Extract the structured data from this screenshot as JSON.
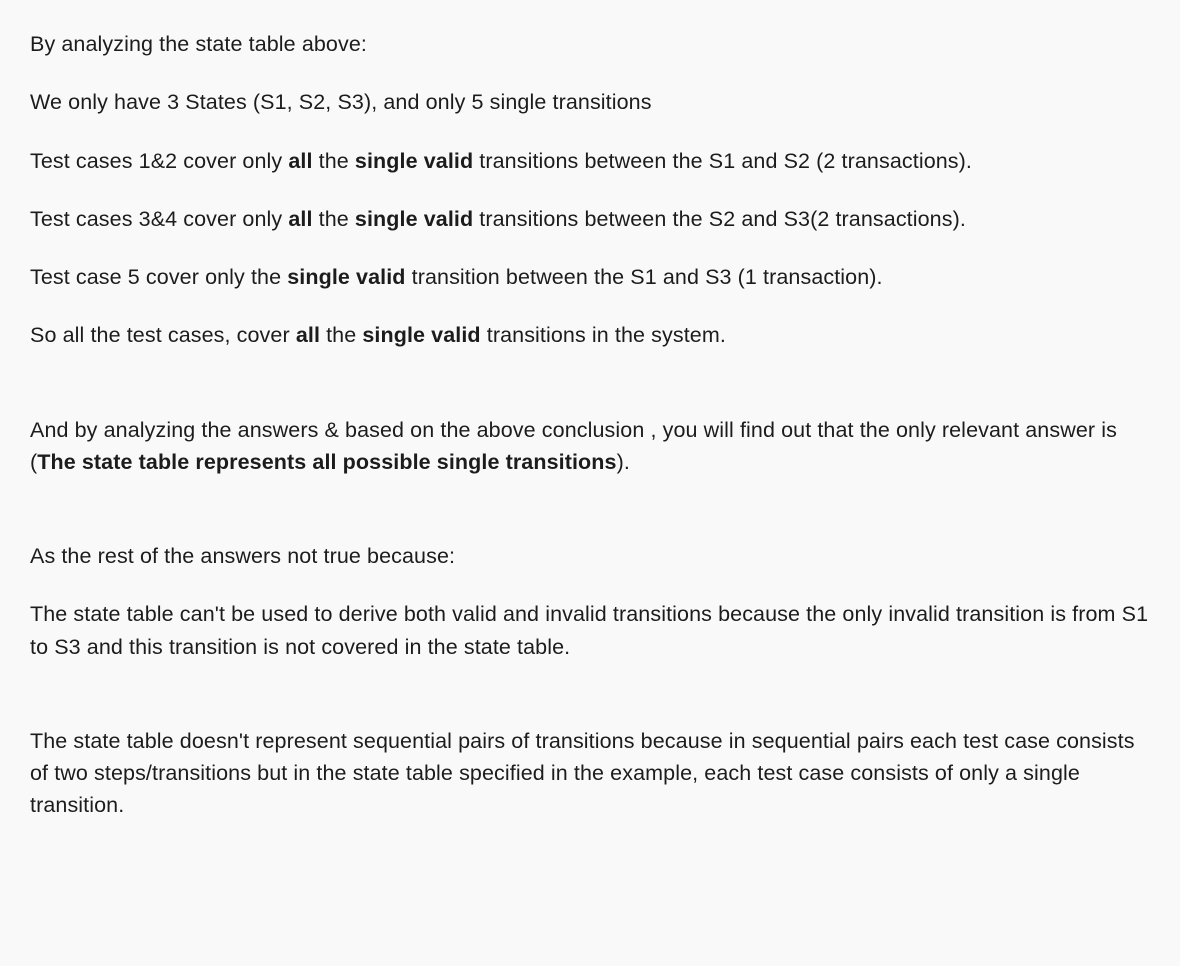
{
  "doc": {
    "background_color": "#f9f9fa",
    "text_color": "#1c1c1c",
    "font_size_pt": 16,
    "line_height": 1.5,
    "paragraphs": [
      {
        "runs": [
          {
            "t": "By analyzing the state table above:",
            "b": false
          }
        ]
      },
      {
        "runs": [
          {
            "t": "We only have 3 States (S1, S2, S3), and only 5 single transitions",
            "b": false
          }
        ]
      },
      {
        "runs": [
          {
            "t": "Test cases 1&2 cover only ",
            "b": false
          },
          {
            "t": "all",
            "b": true
          },
          {
            "t": " the ",
            "b": false
          },
          {
            "t": "single valid",
            "b": true
          },
          {
            "t": " transitions between the S1 and S2 (2 transactions).",
            "b": false
          }
        ]
      },
      {
        "runs": [
          {
            "t": "Test cases 3&4 cover only ",
            "b": false
          },
          {
            "t": "all",
            "b": true
          },
          {
            "t": " the ",
            "b": false
          },
          {
            "t": "single valid",
            "b": true
          },
          {
            "t": " transitions between the S2 and S3(2 transactions).",
            "b": false
          }
        ]
      },
      {
        "runs": [
          {
            "t": "Test case 5 cover only the ",
            "b": false
          },
          {
            "t": "single valid",
            "b": true
          },
          {
            "t": " transition between the S1 and S3 (1 transaction).",
            "b": false
          }
        ]
      },
      {
        "runs": [
          {
            "t": "So all the test cases, cover ",
            "b": false
          },
          {
            "t": "all",
            "b": true
          },
          {
            "t": " the ",
            "b": false
          },
          {
            "t": "single valid",
            "b": true
          },
          {
            "t": " transitions in the system.",
            "b": false
          }
        ]
      },
      {
        "gap": true
      },
      {
        "runs": [
          {
            "t": "And by analyzing the answers & based on the above conclusion , you will find out that the only relevant answer is (",
            "b": false
          },
          {
            "t": "The state table represents all possible single transitions",
            "b": true
          },
          {
            "t": ").",
            "b": false
          }
        ]
      },
      {
        "gap": true
      },
      {
        "runs": [
          {
            "t": "As the rest of the answers not true because:",
            "b": false
          }
        ]
      },
      {
        "runs": [
          {
            "t": "The state table can't be used to derive both valid and invalid transitions because the only invalid transition is from S1 to S3 and this transition is not covered in the state table.",
            "b": false
          }
        ]
      },
      {
        "gap": true
      },
      {
        "runs": [
          {
            "t": "The state table doesn't represent sequential pairs of transitions because in sequential pairs each test case consists of two steps/transitions but in the state table specified in the example, each test case consists of only a single transition.",
            "b": false
          }
        ]
      }
    ]
  }
}
